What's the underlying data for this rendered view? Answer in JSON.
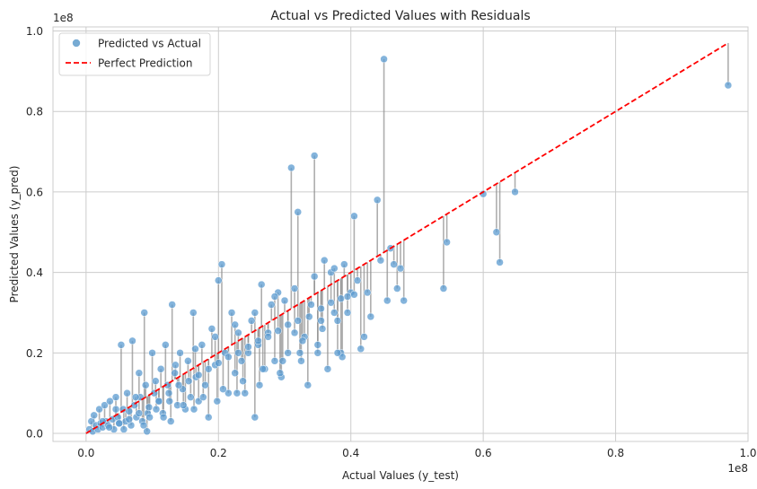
{
  "chart_data": {
    "type": "scatter",
    "title": "Actual vs Predicted Values with Residuals",
    "xlabel": "Actual Values (y_test)",
    "ylabel": "Predicted Values (y_pred)",
    "x_offset_label": "1e8",
    "y_offset_label": "1e8",
    "xlim": [
      -0.05,
      1.0
    ],
    "ylim": [
      -0.02,
      1.01
    ],
    "x_ticks": [
      0.0,
      0.2,
      0.4,
      0.6,
      0.8,
      1.0
    ],
    "x_tick_labels": [
      "0.0",
      "0.2",
      "0.4",
      "0.6",
      "0.8",
      "1.0"
    ],
    "y_ticks": [
      0.0,
      0.2,
      0.4,
      0.6,
      0.8,
      1.0
    ],
    "y_tick_labels": [
      "0.0",
      "0.2",
      "0.4",
      "0.6",
      "0.8",
      "1.0"
    ],
    "grid": true,
    "legend": {
      "position": "top-left",
      "entries": [
        {
          "label": "Predicted vs Actual",
          "kind": "marker",
          "color": "#4a8fc4"
        },
        {
          "label": "Perfect Prediction",
          "kind": "dashed-line",
          "color": "#ff0000"
        }
      ]
    },
    "colors": {
      "points": "#5b9bd0",
      "point_edge": "#ffffff",
      "residual": "#8c8c8c",
      "ideal_line": "#ff0000",
      "grid": "#cccccc"
    },
    "ideal_line": {
      "x": [
        0.0,
        0.97
      ],
      "y": [
        0.0,
        0.97
      ]
    },
    "series": [
      {
        "name": "Predicted vs Actual",
        "x": [
          0.005,
          0.008,
          0.01,
          0.012,
          0.015,
          0.018,
          0.02,
          0.022,
          0.025,
          0.028,
          0.03,
          0.033,
          0.036,
          0.04,
          0.042,
          0.045,
          0.048,
          0.05,
          0.053,
          0.056,
          0.06,
          0.062,
          0.065,
          0.068,
          0.07,
          0.073,
          0.076,
          0.08,
          0.082,
          0.085,
          0.088,
          0.09,
          0.093,
          0.096,
          0.1,
          0.103,
          0.106,
          0.11,
          0.113,
          0.116,
          0.12,
          0.123,
          0.126,
          0.13,
          0.134,
          0.138,
          0.142,
          0.146,
          0.15,
          0.154,
          0.158,
          0.162,
          0.166,
          0.17,
          0.175,
          0.18,
          0.185,
          0.19,
          0.195,
          0.2,
          0.205,
          0.21,
          0.215,
          0.22,
          0.225,
          0.23,
          0.235,
          0.24,
          0.245,
          0.25,
          0.255,
          0.26,
          0.265,
          0.27,
          0.275,
          0.28,
          0.285,
          0.29,
          0.295,
          0.3,
          0.305,
          0.31,
          0.315,
          0.32,
          0.325,
          0.33,
          0.335,
          0.34,
          0.345,
          0.35,
          0.355,
          0.36,
          0.365,
          0.37,
          0.375,
          0.38,
          0.385,
          0.39,
          0.395,
          0.4,
          0.405,
          0.41,
          0.415,
          0.42,
          0.425,
          0.43,
          0.44,
          0.445,
          0.45,
          0.455,
          0.46,
          0.465,
          0.47,
          0.475,
          0.48,
          0.54,
          0.545,
          0.6,
          0.62,
          0.625,
          0.648,
          0.97,
          0.035,
          0.05,
          0.065,
          0.08,
          0.095,
          0.11,
          0.125,
          0.14,
          0.155,
          0.17,
          0.185,
          0.2,
          0.215,
          0.23,
          0.245,
          0.26,
          0.275,
          0.29,
          0.305,
          0.32,
          0.337,
          0.355,
          0.37,
          0.385,
          0.405,
          0.025,
          0.045,
          0.075,
          0.105,
          0.135,
          0.165,
          0.195,
          0.225,
          0.255,
          0.285,
          0.315,
          0.345,
          0.375,
          0.395,
          0.057,
          0.087,
          0.117,
          0.147,
          0.177,
          0.207,
          0.237,
          0.267,
          0.297,
          0.327,
          0.357,
          0.387,
          0.092,
          0.128,
          0.163,
          0.198,
          0.228,
          0.262,
          0.293,
          0.323,
          0.35,
          0.38
        ],
        "y": [
          0.01,
          0.03,
          0.005,
          0.045,
          0.02,
          0.01,
          0.06,
          0.025,
          0.015,
          0.07,
          0.03,
          0.02,
          0.08,
          0.035,
          0.01,
          0.09,
          0.04,
          0.025,
          0.22,
          0.06,
          0.03,
          0.1,
          0.055,
          0.02,
          0.23,
          0.07,
          0.04,
          0.15,
          0.09,
          0.03,
          0.3,
          0.12,
          0.05,
          0.04,
          0.2,
          0.1,
          0.06,
          0.08,
          0.16,
          0.05,
          0.22,
          0.12,
          0.08,
          0.32,
          0.15,
          0.07,
          0.2,
          0.11,
          0.06,
          0.18,
          0.09,
          0.3,
          0.14,
          0.08,
          0.22,
          0.12,
          0.04,
          0.26,
          0.17,
          0.38,
          0.42,
          0.2,
          0.1,
          0.3,
          0.15,
          0.25,
          0.18,
          0.1,
          0.2,
          0.28,
          0.04,
          0.22,
          0.37,
          0.16,
          0.25,
          0.32,
          0.18,
          0.35,
          0.14,
          0.33,
          0.2,
          0.66,
          0.25,
          0.55,
          0.18,
          0.24,
          0.12,
          0.32,
          0.69,
          0.2,
          0.28,
          0.43,
          0.16,
          0.4,
          0.3,
          0.28,
          0.2,
          0.42,
          0.3,
          0.35,
          0.54,
          0.38,
          0.21,
          0.24,
          0.35,
          0.29,
          0.58,
          0.43,
          0.93,
          0.33,
          0.46,
          0.42,
          0.36,
          0.41,
          0.33,
          0.36,
          0.475,
          0.595,
          0.5,
          0.425,
          0.6,
          0.865,
          0.015,
          0.025,
          0.035,
          0.05,
          0.065,
          0.08,
          0.1,
          0.12,
          0.13,
          0.145,
          0.16,
          0.175,
          0.19,
          0.2,
          0.215,
          0.23,
          0.24,
          0.255,
          0.27,
          0.28,
          0.29,
          0.31,
          0.325,
          0.335,
          0.345,
          0.03,
          0.06,
          0.09,
          0.13,
          0.17,
          0.21,
          0.24,
          0.27,
          0.3,
          0.34,
          0.36,
          0.39,
          0.41,
          0.34,
          0.01,
          0.02,
          0.04,
          0.07,
          0.09,
          0.11,
          0.13,
          0.16,
          0.18,
          0.23,
          0.26,
          0.19,
          0.005,
          0.03,
          0.06,
          0.08,
          0.1,
          0.12,
          0.15,
          0.2,
          0.22,
          0.2
        ]
      }
    ]
  }
}
